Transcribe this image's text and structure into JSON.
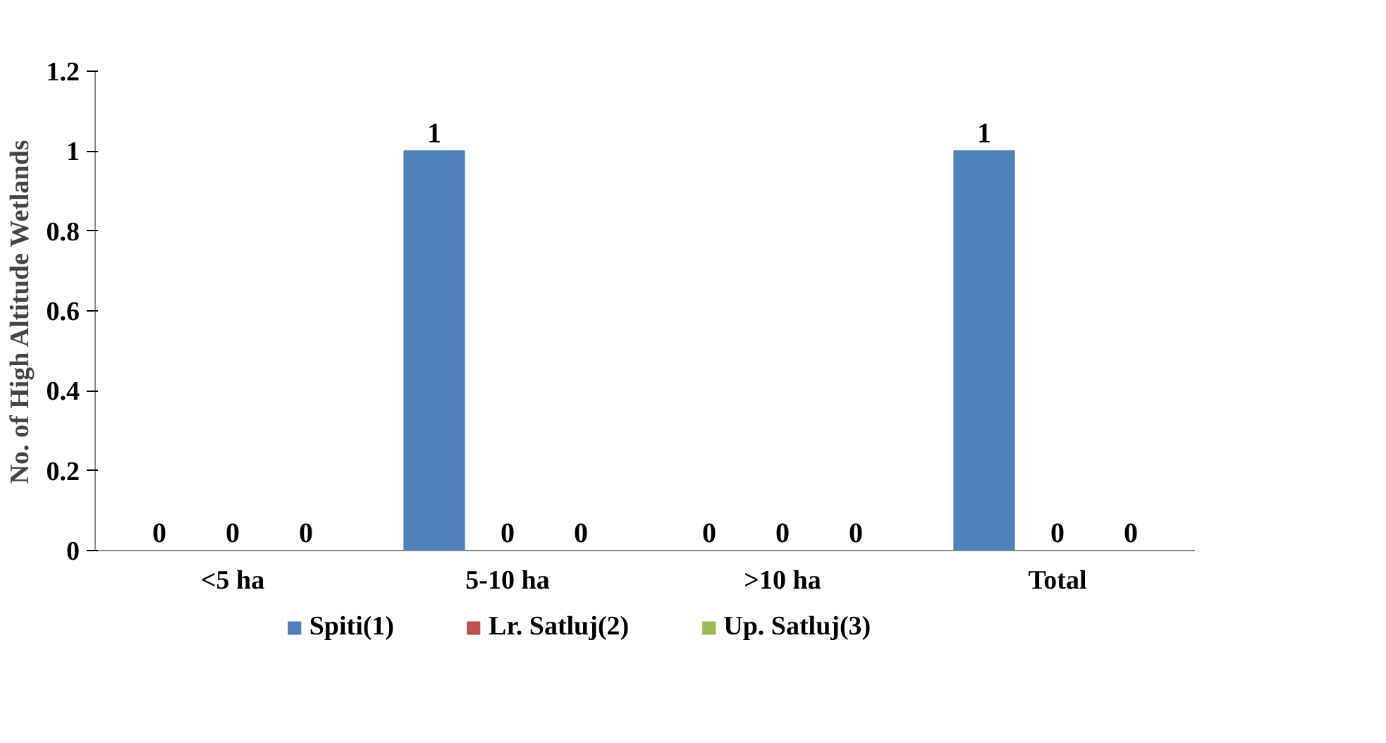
{
  "chart_data": {
    "type": "bar",
    "ylabel": "No. of High Altitude Wetlands",
    "categories": [
      "<5 ha",
      "5-10 ha",
      ">10 ha",
      "Total"
    ],
    "series": [
      {
        "name": "Spiti(1)",
        "color": "#4f81bd",
        "values": [
          0,
          1,
          0,
          1
        ]
      },
      {
        "name": "Lr. Satluj(2)",
        "color": "#c0504d",
        "values": [
          0,
          0,
          0,
          0
        ]
      },
      {
        "name": "Up. Satluj(3)",
        "color": "#9bbb59",
        "values": [
          0,
          0,
          0,
          0
        ]
      }
    ],
    "ylim": [
      0,
      1.2
    ],
    "yticks": [
      0,
      0.2,
      0.4,
      0.6,
      0.8,
      1,
      1.2
    ],
    "grid": false,
    "legend": "bottom",
    "data_labels": true
  }
}
